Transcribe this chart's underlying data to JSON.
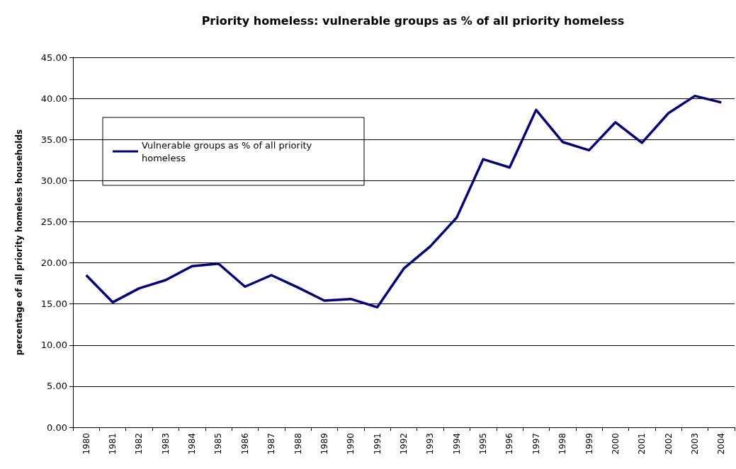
{
  "chart_data": {
    "type": "line",
    "title": "Priority homeless: vulnerable groups as % of all priority homeless",
    "ylabel": "percentage of all priority homeless households",
    "categories": [
      "1980",
      "1981",
      "1982",
      "1983",
      "1984",
      "1985",
      "1986",
      "1987",
      "1988",
      "1989",
      "1990",
      "1991",
      "1992",
      "1993",
      "1994",
      "1995",
      "1996",
      "1997",
      "1998",
      "1999",
      "2000",
      "2001",
      "2002",
      "2003",
      "2004"
    ],
    "series": [
      {
        "name": "Vulnerable groups as % of all priority homeless",
        "color": "#000080",
        "values": [
          18.5,
          15.2,
          16.9,
          17.9,
          19.6,
          19.9,
          17.1,
          18.5,
          17.0,
          15.4,
          15.6,
          14.6,
          19.3,
          22.0,
          25.5,
          32.6,
          31.6,
          38.6,
          34.7,
          33.7,
          37.1,
          34.6,
          38.2,
          40.3,
          39.5
        ]
      }
    ],
    "ylim": [
      0,
      45
    ],
    "yticks": [
      {
        "value": 0,
        "label": "0.00"
      },
      {
        "value": 5,
        "label": "5.00"
      },
      {
        "value": 10,
        "label": "10.00"
      },
      {
        "value": 15,
        "label": "15.00"
      },
      {
        "value": 20,
        "label": "20.00"
      },
      {
        "value": 25,
        "label": "25.00"
      },
      {
        "value": 30,
        "label": "30.00"
      },
      {
        "value": 35,
        "label": "35.00"
      },
      {
        "value": 40,
        "label": "40.00"
      },
      {
        "value": 45,
        "label": "45.00"
      }
    ],
    "grid": "y",
    "legend": "top left",
    "marker": "none",
    "line_style": "solid"
  }
}
